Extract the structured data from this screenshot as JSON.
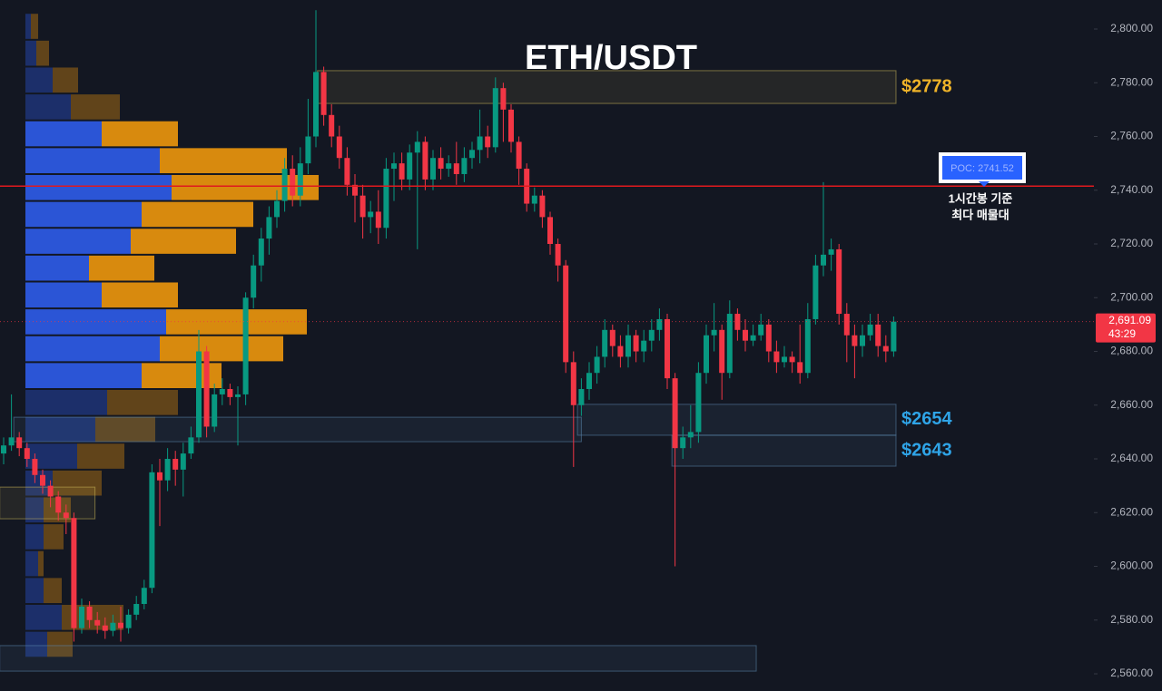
{
  "chart_data": {
    "type": "candlestick",
    "title": "ETH/USDT",
    "ylim": [
      2553.6,
      2810.8
    ],
    "yticks": [
      {
        "value": 2560,
        "label": "2,560.00"
      },
      {
        "value": 2580,
        "label": "2,580.00"
      },
      {
        "value": 2600,
        "label": "2,600.00"
      },
      {
        "value": 2620,
        "label": "2,620.00"
      },
      {
        "value": 2640,
        "label": "2,640.00"
      },
      {
        "value": 2660,
        "label": "2,660.00"
      },
      {
        "value": 2680,
        "label": "2,680.00"
      },
      {
        "value": 2700,
        "label": "2,700.00"
      },
      {
        "value": 2720,
        "label": "2,720.00"
      },
      {
        "value": 2740,
        "label": "2,740.00"
      },
      {
        "value": 2760,
        "label": "2,760.00"
      },
      {
        "value": 2780,
        "label": "2,780.00"
      },
      {
        "value": 2800,
        "label": "2,800.00"
      }
    ],
    "up_color": "#089981",
    "down_color": "#f23645",
    "open": [
      2642,
      2645,
      2648,
      2644,
      2640,
      2634,
      2630,
      2626,
      2620,
      2618,
      2577,
      2585,
      2580,
      2578,
      2576,
      2579,
      2577,
      2582,
      2586,
      2592,
      2635,
      2632,
      2640,
      2636,
      2642,
      2648,
      2680,
      2652,
      2664,
      2666,
      2663,
      2664,
      2700,
      2712,
      2722,
      2730,
      2736,
      2748,
      2738,
      2750,
      2760,
      2784,
      2768,
      2760,
      2752,
      2742,
      2738,
      2730,
      2732,
      2726,
      2748,
      2750,
      2744,
      2754,
      2758,
      2744,
      2752,
      2748,
      2750,
      2746,
      2752,
      2755,
      2760,
      2756,
      2778,
      2770,
      2758,
      2748,
      2735,
      2738,
      2730,
      2720,
      2712,
      2676,
      2660,
      2666,
      2672,
      2678,
      2688,
      2682,
      2678,
      2686,
      2680,
      2684,
      2688,
      2692,
      2670,
      2644,
      2648,
      2650,
      2672,
      2686,
      2688,
      2672,
      2694,
      2688,
      2684,
      2686,
      2690,
      2680,
      2676,
      2678,
      2676,
      2672,
      2692,
      2712,
      2716,
      2718,
      2694,
      2686,
      2682,
      2686,
      2690,
      2682,
      2680
    ],
    "high": [
      2648,
      2664,
      2650,
      2646,
      2642,
      2636,
      2632,
      2628,
      2623,
      2620,
      2588,
      2587,
      2583,
      2581,
      2582,
      2585,
      2584,
      2589,
      2595,
      2638,
      2640,
      2644,
      2643,
      2646,
      2652,
      2688,
      2682,
      2668,
      2670,
      2668,
      2667,
      2702,
      2716,
      2726,
      2734,
      2740,
      2752,
      2753,
      2756,
      2774,
      2807,
      2786,
      2772,
      2764,
      2756,
      2746,
      2742,
      2736,
      2740,
      2752,
      2754,
      2754,
      2757,
      2762,
      2760,
      2755,
      2756,
      2753,
      2758,
      2756,
      2758,
      2770,
      2764,
      2782,
      2780,
      2772,
      2760,
      2750,
      2741,
      2740,
      2732,
      2722,
      2714,
      2680,
      2670,
      2676,
      2682,
      2692,
      2690,
      2686,
      2690,
      2688,
      2688,
      2692,
      2696,
      2694,
      2672,
      2652,
      2660,
      2676,
      2690,
      2698,
      2690,
      2699,
      2696,
      2692,
      2690,
      2694,
      2692,
      2684,
      2682,
      2680,
      2690,
      2698,
      2716,
      2743,
      2722,
      2720,
      2698,
      2690,
      2690,
      2694,
      2694,
      2686,
      2693
    ],
    "low": [
      2638,
      2643,
      2641,
      2637,
      2631,
      2627,
      2622,
      2617,
      2612,
      2572,
      2575,
      2577,
      2575,
      2573,
      2574,
      2572,
      2575,
      2580,
      2584,
      2590,
      2615,
      2628,
      2630,
      2626,
      2640,
      2646,
      2648,
      2650,
      2660,
      2660,
      2645,
      2660,
      2696,
      2706,
      2716,
      2726,
      2732,
      2734,
      2734,
      2746,
      2756,
      2764,
      2756,
      2748,
      2738,
      2728,
      2722,
      2724,
      2720,
      2722,
      2736,
      2740,
      2740,
      2718,
      2740,
      2740,
      2744,
      2745,
      2742,
      2743,
      2748,
      2750,
      2752,
      2754,
      2758,
      2754,
      2742,
      2732,
      2732,
      2726,
      2716,
      2706,
      2672,
      2637,
      2656,
      2662,
      2668,
      2674,
      2678,
      2674,
      2674,
      2676,
      2676,
      2680,
      2684,
      2666,
      2600,
      2640,
      2644,
      2646,
      2668,
      2680,
      2662,
      2670,
      2684,
      2680,
      2682,
      2684,
      2676,
      2672,
      2674,
      2672,
      2668,
      2670,
      2690,
      2708,
      2710,
      2690,
      2676,
      2670,
      2678,
      2684,
      2678,
      2676,
      2678
    ],
    "close": [
      2645,
      2648,
      2644,
      2640,
      2634,
      2630,
      2626,
      2620,
      2618,
      2577,
      2585,
      2580,
      2578,
      2576,
      2579,
      2577,
      2582,
      2586,
      2592,
      2635,
      2632,
      2640,
      2636,
      2642,
      2648,
      2680,
      2652,
      2664,
      2666,
      2663,
      2664,
      2700,
      2712,
      2722,
      2730,
      2736,
      2748,
      2738,
      2750,
      2760,
      2784,
      2768,
      2760,
      2752,
      2742,
      2738,
      2730,
      2732,
      2726,
      2748,
      2750,
      2744,
      2754,
      2758,
      2744,
      2752,
      2748,
      2750,
      2746,
      2752,
      2755,
      2760,
      2756,
      2778,
      2770,
      2758,
      2748,
      2735,
      2738,
      2730,
      2720,
      2712,
      2676,
      2660,
      2666,
      2672,
      2678,
      2688,
      2682,
      2678,
      2686,
      2680,
      2684,
      2688,
      2692,
      2670,
      2644,
      2648,
      2650,
      2672,
      2686,
      2688,
      2672,
      2694,
      2688,
      2684,
      2686,
      2690,
      2680,
      2676,
      2678,
      2676,
      2672,
      2692,
      2712,
      2716,
      2718,
      2694,
      2686,
      2682,
      2686,
      2690,
      2682,
      2680,
      2691.09
    ],
    "last_price": {
      "value": 2691.09,
      "label": "2,691.09"
    },
    "countdown": "43:29",
    "poc": {
      "value": 2741.52,
      "label": "POC: 2741.52"
    },
    "poc_color": "#e0191e",
    "annotation": [
      "1시간봉 기준",
      "최다 매물대"
    ],
    "zones": [
      {
        "low": 2772.3,
        "high": 2784.5,
        "from": 40.2,
        "to": 114.3,
        "color": "#c9b458",
        "label": "$2778",
        "label_color": "#f0b429"
      },
      {
        "low": 2648.8,
        "high": 2660.3,
        "from": 73.5,
        "to": 114.3,
        "color": "#5b86ad",
        "label": "$2654",
        "label_color": "#2fa4e7"
      },
      {
        "low": 2637.3,
        "high": 2648.8,
        "from": 85.6,
        "to": 114.3,
        "color": "#5b86ad",
        "label": "$2643",
        "label_color": "#2fa4e7"
      },
      {
        "low": 2646.4,
        "high": 2655.5,
        "from": 1.3,
        "to": 74,
        "color": "#5b86ad"
      },
      {
        "low": 2617.7,
        "high": 2629.5,
        "from": -0.5,
        "to": 11.7,
        "color": "#c9b458"
      },
      {
        "low": 2561,
        "high": 2570.5,
        "from": -0.5,
        "to": 96.4,
        "color": "#5b86ad"
      }
    ],
    "profile": {
      "bins": [
        2566,
        2576,
        2586,
        2596,
        2606,
        2616,
        2626,
        2636,
        2646,
        2656,
        2666,
        2676,
        2686,
        2696,
        2706,
        2716,
        2726,
        2736,
        2746,
        2756,
        2766,
        2776,
        2786,
        2796,
        2806
      ],
      "buy": [
        24,
        40,
        20,
        14,
        20,
        20,
        30,
        57,
        77,
        90,
        128,
        148,
        155,
        84,
        70,
        116,
        128,
        161,
        148,
        84,
        50,
        30,
        12,
        6
      ],
      "sell": [
        28,
        68,
        20,
        6,
        22,
        30,
        54,
        52,
        66,
        78,
        88,
        136,
        155,
        84,
        72,
        116,
        123,
        162,
        140,
        84,
        54,
        28,
        14,
        8
      ],
      "buy_color": "#2b55d6",
      "sell_color": "#d88a0e"
    }
  }
}
